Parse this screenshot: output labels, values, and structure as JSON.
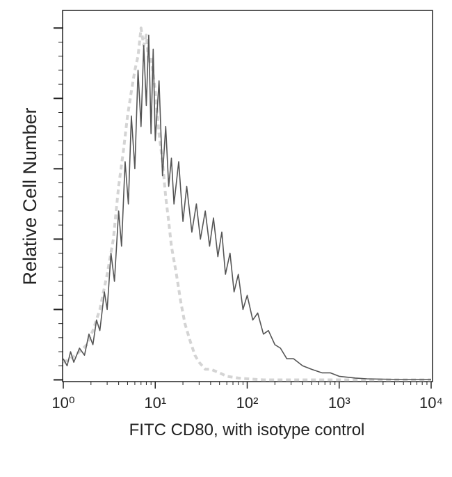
{
  "chart_data": {
    "type": "line",
    "x_label": "FITC CD80, with isotype control",
    "y_label": "Relative Cell Number",
    "xlog": true,
    "xlim": [
      1,
      10000
    ],
    "xticks": [
      {
        "value": 1,
        "label": "10⁰"
      },
      {
        "value": 10,
        "label": "10¹"
      },
      {
        "value": 100,
        "label": "10²"
      },
      {
        "value": 1000,
        "label": "10³"
      },
      {
        "value": 10000,
        "label": "10⁴"
      }
    ],
    "ylim": [
      -0.5,
      105
    ],
    "yticks": [
      0,
      20,
      40,
      60,
      80,
      100
    ],
    "series": [
      {
        "color": "#d4d4d4",
        "dash": true,
        "x": [
          1,
          1.2,
          1.5,
          1.8,
          2.1,
          2.5,
          3.0,
          3.5,
          4.0,
          4.5,
          5.0,
          5.5,
          6.0,
          6.5,
          7.0,
          7.5,
          8.0,
          8.5,
          9.0,
          10,
          11,
          12,
          13,
          14,
          15,
          17,
          19,
          21,
          24,
          27,
          30,
          35,
          40,
          50,
          60,
          80,
          100,
          150,
          300,
          1000,
          10000
        ],
        "values": [
          5,
          6,
          8,
          10,
          14,
          20,
          30,
          40,
          55,
          65,
          75,
          82,
          88,
          92,
          100,
          95,
          98,
          90,
          92,
          82,
          70,
          62,
          52,
          45,
          38,
          30,
          22,
          16,
          11,
          7,
          5,
          3,
          3,
          2,
          1,
          0.5,
          0.3,
          0,
          0,
          0,
          0
        ]
      },
      {
        "color": "#555555",
        "dash": false,
        "x": [
          1,
          1.1,
          1.2,
          1.3,
          1.5,
          1.7,
          1.9,
          2.1,
          2.3,
          2.5,
          2.8,
          3.0,
          3.3,
          3.6,
          4.0,
          4.3,
          4.7,
          5.1,
          5.5,
          6.0,
          6.5,
          7.0,
          7.5,
          8.0,
          8.5,
          9.0,
          9.5,
          10,
          11,
          12,
          13,
          14,
          15,
          16,
          18,
          20,
          22,
          25,
          28,
          31,
          35,
          39,
          43,
          48,
          53,
          58,
          65,
          72,
          80,
          90,
          100,
          115,
          130,
          150,
          170,
          200,
          230,
          270,
          320,
          400,
          500,
          650,
          800,
          1000,
          1500,
          2000,
          3000,
          5000,
          10000
        ],
        "values": [
          6,
          4,
          8,
          5,
          9,
          7,
          13,
          10,
          17,
          14,
          25,
          20,
          36,
          28,
          48,
          38,
          62,
          50,
          75,
          60,
          88,
          72,
          95,
          78,
          98,
          70,
          94,
          68,
          85,
          58,
          72,
          55,
          63,
          50,
          62,
          45,
          55,
          42,
          50,
          40,
          48,
          38,
          46,
          35,
          42,
          30,
          36,
          25,
          30,
          20,
          24,
          17,
          19,
          13,
          14,
          10,
          9,
          6,
          6,
          4,
          3,
          2,
          2,
          1,
          0.5,
          0.3,
          0.2,
          0.1,
          0.1
        ]
      }
    ]
  }
}
